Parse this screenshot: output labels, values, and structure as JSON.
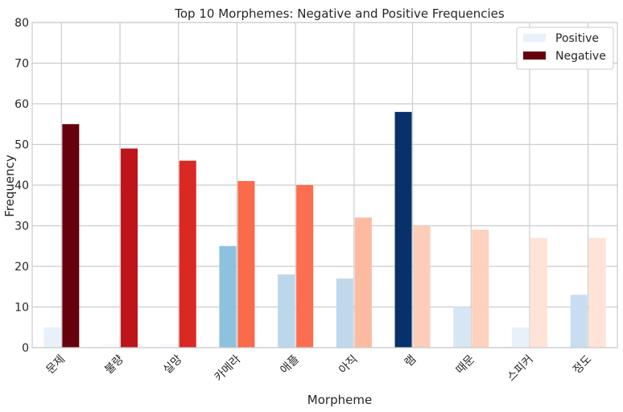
{
  "chart_data": {
    "type": "bar",
    "title": "Top 10 Morphemes: Negative and Positive Frequencies",
    "xlabel": "Morpheme",
    "ylabel": "Frequency",
    "ylim": [
      0,
      80
    ],
    "yticks": [
      0,
      10,
      20,
      30,
      40,
      50,
      60,
      70,
      80
    ],
    "grid": true,
    "legend_position": "top-right",
    "categories": [
      "문제",
      "불량",
      "실망",
      "카메라",
      "애플",
      "아직",
      "램",
      "때문",
      "스피커",
      "정도"
    ],
    "series": [
      {
        "name": "Positive",
        "values": [
          5,
          1,
          1,
          25,
          18,
          17,
          58,
          10,
          5,
          13
        ],
        "colors": [
          "#e8f1fa",
          "#f7fbff",
          "#f7fbff",
          "#8dc1dd",
          "#bcd7eb",
          "#bfd8ec",
          "#08306b",
          "#d6e6f4",
          "#e8f1fa",
          "#c9ddf0"
        ],
        "legend_color": "#e8f1fa"
      },
      {
        "name": "Negative",
        "values": [
          55,
          49,
          46,
          41,
          40,
          32,
          30,
          29,
          27,
          27
        ],
        "colors": [
          "#67000d",
          "#bd151a",
          "#da2824",
          "#fb6a4a",
          "#fc6e4f",
          "#fcbba1",
          "#fdcdb9",
          "#fdd1bd",
          "#fee3d6",
          "#fee3d6"
        ],
        "legend_color": "#67000d"
      }
    ]
  }
}
